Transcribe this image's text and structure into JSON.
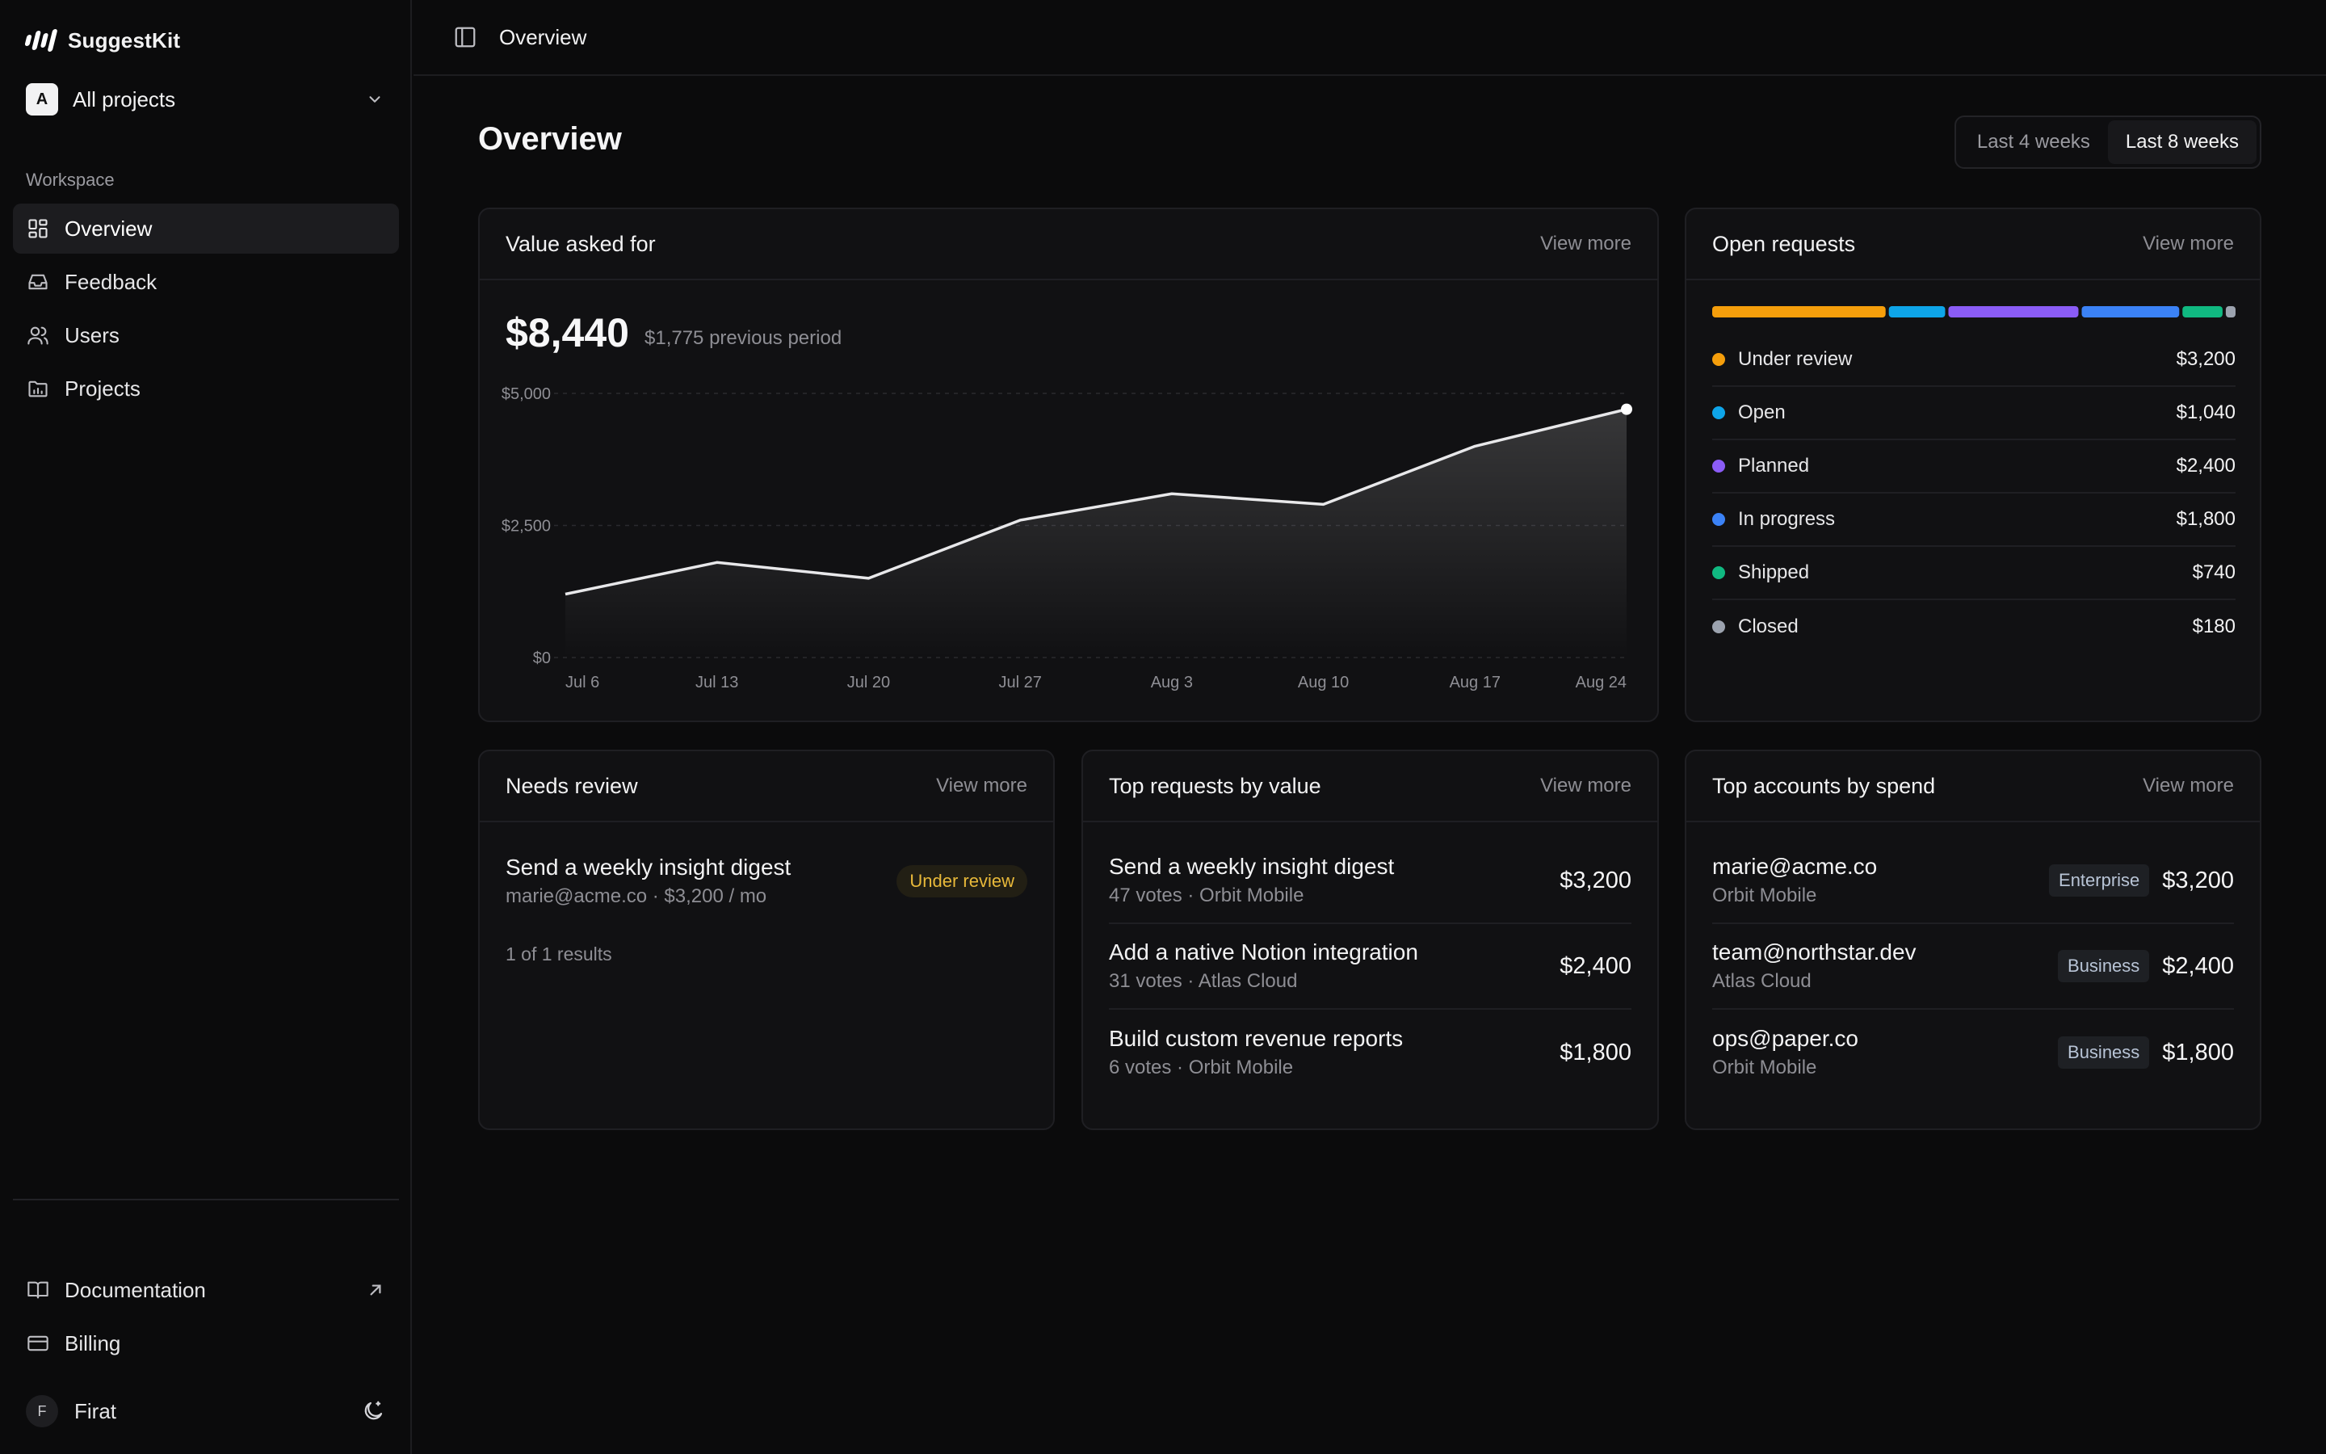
{
  "app": {
    "name": "SuggestKit"
  },
  "project_switcher": {
    "avatar_letter": "A",
    "label": "All projects"
  },
  "sidebar": {
    "section_label": "Workspace",
    "items": [
      {
        "label": "Overview",
        "icon": "dashboard-icon",
        "active": true
      },
      {
        "label": "Feedback",
        "icon": "inbox-icon"
      },
      {
        "label": "Users",
        "icon": "users-icon"
      },
      {
        "label": "Projects",
        "icon": "folder-chart-icon"
      }
    ],
    "bottom_items": [
      {
        "label": "Documentation",
        "icon": "book-icon",
        "external": true
      },
      {
        "label": "Billing",
        "icon": "credit-card-icon"
      }
    ],
    "user": {
      "initial": "F",
      "name": "Firat"
    }
  },
  "topbar": {
    "title": "Overview"
  },
  "page": {
    "title": "Overview",
    "range_options": [
      "Last 4 weeks",
      "Last 8 weeks"
    ],
    "range_selected": "Last 8 weeks"
  },
  "value_card": {
    "title": "Value asked for",
    "view_more": "View more",
    "total": "$8,440",
    "previous": "$1,775 previous period"
  },
  "chart_data": {
    "type": "area",
    "title": "",
    "x": [
      "Jul 6",
      "Jul 13",
      "Jul 20",
      "Jul 27",
      "Aug 3",
      "Aug 10",
      "Aug 17",
      "Aug 24"
    ],
    "values": [
      1200,
      1800,
      1500,
      2600,
      3100,
      2900,
      4000,
      4700
    ],
    "ylim": [
      0,
      5000
    ],
    "yticks": [
      "$0",
      "$2,500",
      "$5,000"
    ],
    "ytick_values": [
      0,
      2500,
      5000
    ],
    "grid": true,
    "line_color": "#e8e8ea"
  },
  "open_requests": {
    "title": "Open requests",
    "view_more": "View more",
    "statuses": [
      {
        "label": "Under review",
        "value": "$3,200",
        "amount": 3200,
        "color": "#f59e0b"
      },
      {
        "label": "Open",
        "value": "$1,040",
        "amount": 1040,
        "color": "#0ea5e9"
      },
      {
        "label": "Planned",
        "value": "$2,400",
        "amount": 2400,
        "color": "#8b5cf6"
      },
      {
        "label": "In progress",
        "value": "$1,800",
        "amount": 1800,
        "color": "#3b82f6"
      },
      {
        "label": "Shipped",
        "value": "$740",
        "amount": 740,
        "color": "#10b981"
      },
      {
        "label": "Closed",
        "value": "$180",
        "amount": 180,
        "color": "#9ca3af"
      }
    ]
  },
  "needs_review": {
    "title": "Needs review",
    "view_more": "View more",
    "items": [
      {
        "title": "Send a weekly insight digest",
        "sub": "marie@acme.co · $3,200 / mo",
        "badge": "Under review"
      }
    ],
    "results": "1 of 1 results"
  },
  "top_requests": {
    "title": "Top requests by value",
    "view_more": "View more",
    "items": [
      {
        "title": "Send a weekly insight digest",
        "sub": "47 votes · Orbit Mobile",
        "amount": "$3,200"
      },
      {
        "title": "Add a native Notion integration",
        "sub": "31 votes · Atlas Cloud",
        "amount": "$2,400"
      },
      {
        "title": "Build custom revenue reports",
        "sub": "6 votes · Orbit Mobile",
        "amount": "$1,800"
      }
    ]
  },
  "top_accounts": {
    "title": "Top accounts by spend",
    "view_more": "View more",
    "items": [
      {
        "title": "marie@acme.co",
        "sub": "Orbit Mobile",
        "plan": "Enterprise",
        "amount": "$3,200"
      },
      {
        "title": "team@northstar.dev",
        "sub": "Atlas Cloud",
        "plan": "Business",
        "amount": "$2,400"
      },
      {
        "title": "ops@paper.co",
        "sub": "Orbit Mobile",
        "plan": "Business",
        "amount": "$1,800"
      }
    ]
  }
}
